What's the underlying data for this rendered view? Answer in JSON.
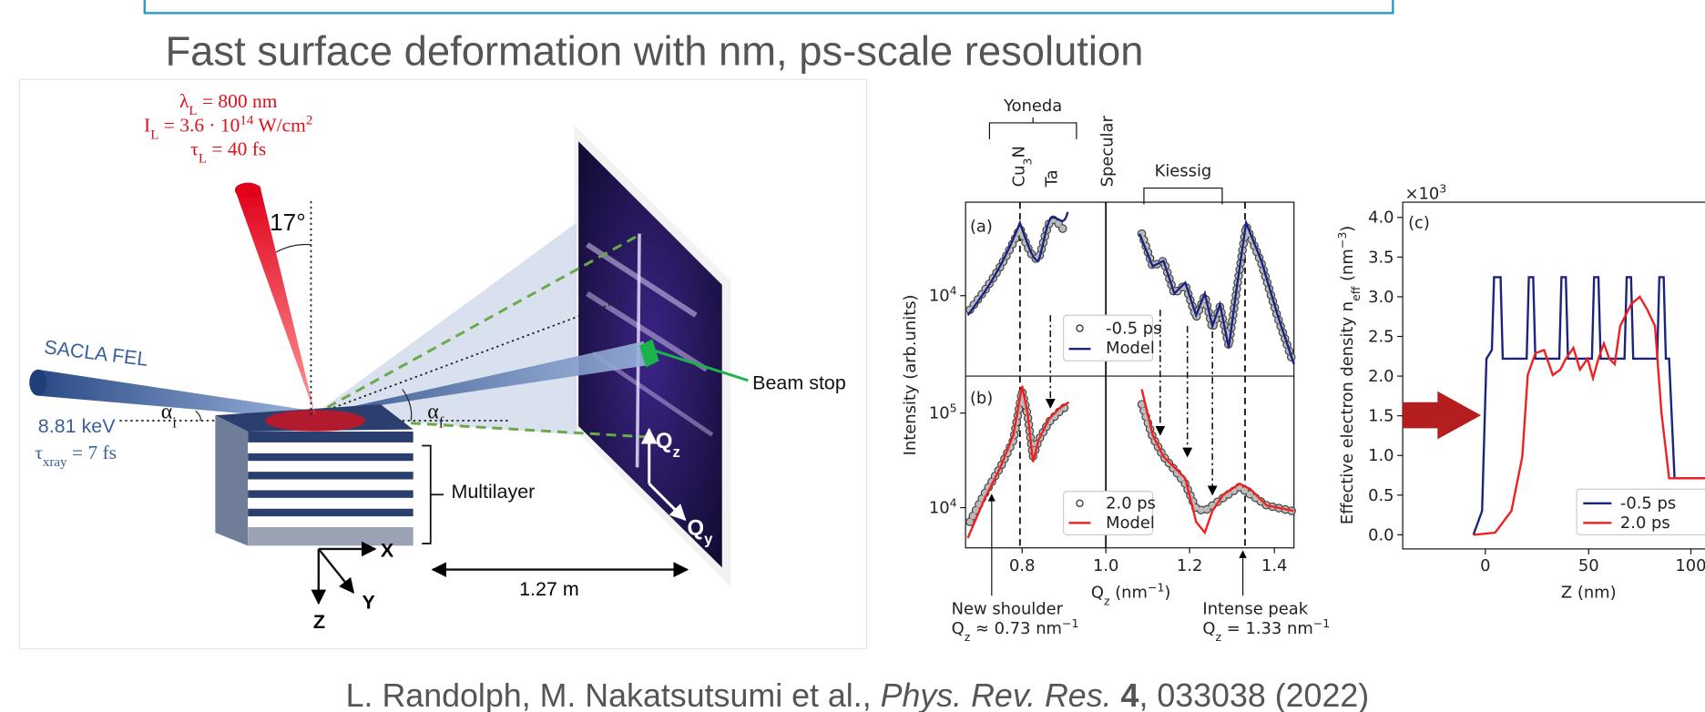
{
  "header": {
    "subtitle": "Fast surface deformation with nm, ps-scale resolution"
  },
  "setup": {
    "laser_wavelength": {
      "symbol": "λ",
      "sub": "L",
      "rest": " = 800 nm"
    },
    "laser_intensity": {
      "symbol": "I",
      "sub": "L",
      "rest": " = 3.6 · 10",
      "exp": "14",
      "unit": " W/cm",
      "unit_exp": "2"
    },
    "laser_duration": {
      "symbol": "τ",
      "sub": "L",
      "rest": " = 40 fs"
    },
    "angle": "17°",
    "source": "SACLA FEL",
    "energy": "8.81 keV",
    "xray_duration": {
      "symbol": "τ",
      "sub": "xray",
      "rest": " = 7 fs"
    },
    "incidence_angle": {
      "symbol": "α",
      "sub": "i"
    },
    "exit_angle": {
      "symbol": "α",
      "sub": "f"
    },
    "sample": "Multilayer",
    "beam_stop": "Beam stop",
    "distance": "1.27 m",
    "axes": {
      "x": "X",
      "y": "Y",
      "z": "Z"
    },
    "detector_axes": {
      "qz": {
        "symbol": "Q",
        "sub": "z"
      },
      "qy": {
        "symbol": "Q",
        "sub": "y"
      }
    }
  },
  "reflectivity": {
    "top_labels": {
      "yoneda": "Yoneda",
      "cu3n": {
        "symbol": "Cu",
        "sub": "3",
        "rest": "N"
      },
      "ta": "Ta",
      "specular": "Specular",
      "kiessig": "Kiessig"
    },
    "panel_a": {
      "label": "(a)",
      "yticks": [
        {
          "base": "10",
          "exp": "4"
        }
      ],
      "legend": [
        "-0.5 ps",
        "Model"
      ]
    },
    "panel_b": {
      "label": "(b)",
      "yticks": [
        {
          "base": "10",
          "exp": "5"
        },
        {
          "base": "10",
          "exp": "4"
        }
      ],
      "legend": [
        "2.0 ps",
        "Model"
      ]
    },
    "xticks": [
      "0.8",
      "1.0",
      "1.2",
      "1.4"
    ],
    "xlabel": {
      "symbol": "Q",
      "sub": "z",
      "rest": " (nm",
      "exp": "−1",
      "close": ")"
    },
    "ylabel": "Intensity (arb.units)",
    "annotations": [
      {
        "title": "New shoulder",
        "formula": {
          "symbol": "Q",
          "sub": "z",
          "rest": " ≈ 0.73 nm",
          "exp": "−1"
        }
      },
      {
        "title": "Intense peak",
        "formula": {
          "symbol": "Q",
          "sub": "z",
          "rest": " = 1.33 nm",
          "exp": "−1"
        }
      }
    ]
  },
  "density": {
    "label": "(c)",
    "multiplier": {
      "base": "×10",
      "exp": "3"
    },
    "yticks": [
      "0.0",
      "0.5",
      "1.0",
      "1.5",
      "2.0",
      "2.5",
      "3.0",
      "3.5",
      "4.0"
    ],
    "xticks": [
      "0",
      "50",
      "100"
    ],
    "xlabel": "Z (nm)",
    "ylabel": {
      "rest": "Effective electron density ",
      "symbol": "n",
      "sub": "eff",
      "unit": " (nm",
      "exp": "−3",
      "close": ")"
    },
    "legend": [
      "-0.5 ps",
      "2.0 ps"
    ]
  },
  "citation": {
    "authors": "L. Randolph, M. Nakatsutsumi et al., ",
    "journal": "Phys. Rev. Res.",
    "volume": "4",
    "rest": ", 033038 (2022)"
  }
}
